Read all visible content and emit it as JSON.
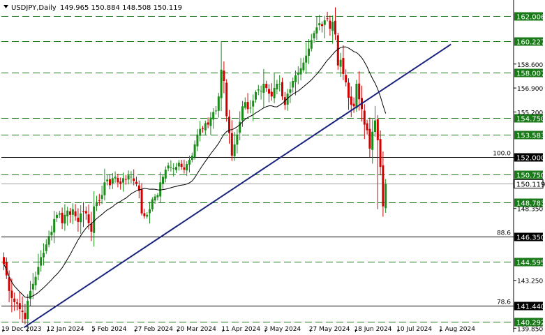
{
  "header": {
    "symbol_label": "USDJPY,Daily",
    "ohlc_label": "149.965 150.884 148.508 150.119"
  },
  "chart_data": {
    "type": "candlestick",
    "ylim": [
      139.85,
      163.0
    ],
    "y_ticks": [
      "162.006",
      "160.227",
      "158.600",
      "158.007",
      "156.900",
      "155.200",
      "154.750",
      "153.583",
      "152.000",
      "150.750",
      "150.119",
      "148.783",
      "148.350",
      "146.350",
      "144.595",
      "143.250",
      "141.440",
      "140.292",
      "139.850"
    ],
    "x_ticks": [
      {
        "index": 0,
        "label": "19 Dec 2023"
      },
      {
        "index": 17,
        "label": "12 Jan 2024"
      },
      {
        "index": 34,
        "label": "5 Feb 2024"
      },
      {
        "index": 50,
        "label": "27 Feb 2024"
      },
      {
        "index": 66,
        "label": "20 Mar 2024"
      },
      {
        "index": 83,
        "label": "11 Apr 2024"
      },
      {
        "index": 99,
        "label": "3 May 2024"
      },
      {
        "index": 116,
        "label": "27 May 2024"
      },
      {
        "index": 133,
        "label": "18 Jun 2024"
      },
      {
        "index": 149,
        "label": "10 Jul 2024"
      },
      {
        "index": 165,
        "label": "1 Aug 2024"
      }
    ],
    "closes": [
      144.4,
      143.6,
      142.5,
      142.0,
      141.7,
      141.6,
      141.2,
      141.0,
      140.5,
      141.8,
      142.5,
      143.0,
      143.5,
      144.2,
      144.9,
      145.2,
      145.8,
      146.4,
      146.7,
      147.6,
      147.9,
      148.0,
      147.3,
      147.9,
      148.2,
      147.9,
      148.3,
      147.8,
      147.4,
      148.0,
      148.1,
      148.0,
      147.3,
      146.7,
      148.5,
      148.8,
      148.9,
      149.3,
      150.2,
      150.4,
      150.0,
      150.5,
      150.6,
      150.2,
      150.1,
      150.5,
      150.4,
      150.7,
      150.6,
      150.3,
      150.1,
      149.6,
      148.0,
      147.8,
      147.9,
      148.3,
      149.0,
      149.2,
      149.3,
      150.2,
      150.6,
      151.1,
      151.4,
      151.3,
      151.2,
      151.3,
      151.6,
      151.3,
      151.1,
      151.5,
      151.8,
      152.1,
      152.9,
      153.6,
      154.0,
      154.0,
      154.4,
      154.3,
      154.8,
      155.2,
      155.3,
      156.3,
      158.2,
      157.4,
      154.9,
      153.7,
      152.1,
      152.9,
      153.6,
      154.5,
      155.6,
      155.9,
      155.4,
      155.5,
      156.0,
      156.6,
      156.8,
      156.7,
      157.2,
      156.9,
      156.5,
      156.3,
      156.9,
      157.2,
      157.2,
      156.3,
      155.7,
      156.5,
      156.8,
      157.4,
      157.8,
      158.0,
      158.3,
      158.7,
      159.2,
      159.7,
      160.3,
      160.8,
      161.2,
      161.5,
      161.3,
      161.7,
      161.8,
      161.1,
      161.6,
      160.7,
      158.5,
      158.9,
      157.9,
      157.3,
      156.2,
      155.7,
      155.6,
      157.2,
      156.1,
      155.4,
      154.3,
      153.9,
      152.6,
      153.8,
      154.6,
      153.2,
      151.3,
      148.5,
      150.1
    ],
    "levels": [
      {
        "value": 162.006,
        "label": "162.006",
        "style": "dashed"
      },
      {
        "value": 160.227,
        "label": "160.227",
        "style": "dashed"
      },
      {
        "value": 158.007,
        "label": "158.007",
        "style": "dashed"
      },
      {
        "value": 154.75,
        "label": "154.750",
        "style": "dashed"
      },
      {
        "value": 153.583,
        "label": "153.583",
        "style": "dashed"
      },
      {
        "value": 152.0,
        "label": "152.000",
        "style": "solid",
        "fib": "100.0"
      },
      {
        "value": 150.75,
        "label": "150.750",
        "style": "dashed"
      },
      {
        "value": 150.119,
        "label": "150.119",
        "style": "current"
      },
      {
        "value": 148.783,
        "label": "148.783",
        "style": "dashed"
      },
      {
        "value": 146.35,
        "label": "146.350",
        "style": "solid",
        "fib": "88.6"
      },
      {
        "value": 144.595,
        "label": "144.595",
        "style": "dashed"
      },
      {
        "value": 141.44,
        "label": "141.440",
        "style": "solid",
        "fib": "78.6"
      },
      {
        "value": 140.292,
        "label": "140.292",
        "style": "dashed"
      }
    ],
    "trendline": {
      "from": {
        "index": 8,
        "value": 139.9
      },
      "to": {
        "index": 169,
        "value": 160.0
      }
    },
    "moving_average": {
      "period": 20
    },
    "colors": {
      "bull": "#1a8c1a",
      "bear": "#d10000",
      "level": "#1a7a1a",
      "trend": "#1a237e",
      "ma": "#000000",
      "grid_solid": "#000000"
    }
  }
}
